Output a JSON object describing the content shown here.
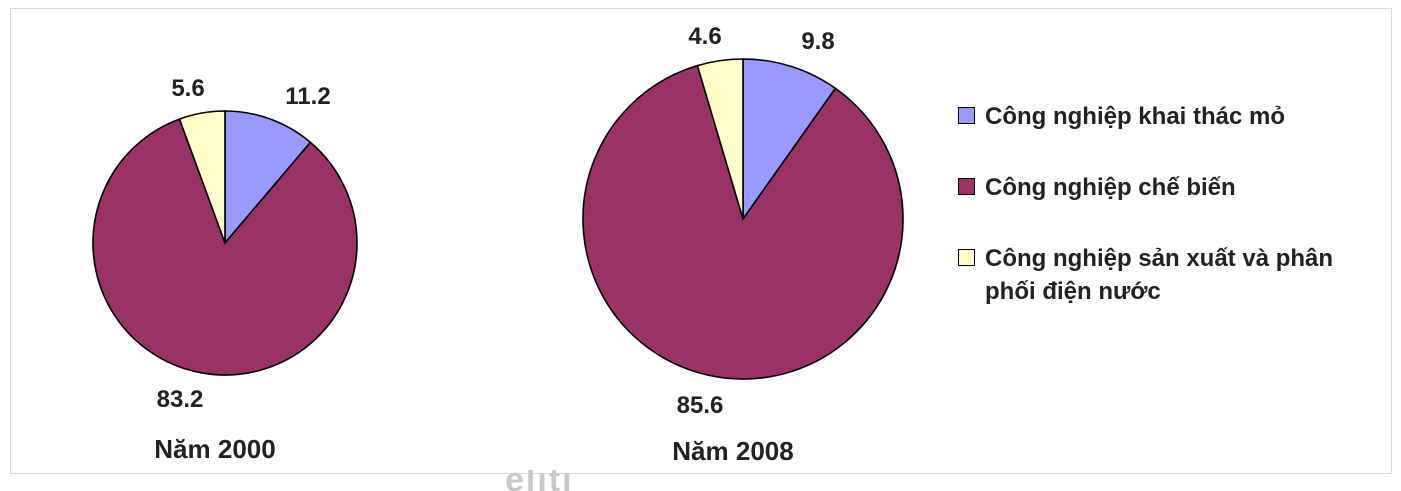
{
  "chart_data": {
    "type": "pie",
    "categories": [
      "Công nghiệp khai thác mỏ",
      "Công nghiệp chế biến",
      "Công nghiệp sản xuất và phân phối điện nước"
    ],
    "colors": [
      "#9999ff",
      "#993366",
      "#ffffcc"
    ],
    "pies": [
      {
        "label": "Năm 2000",
        "values": [
          11.2,
          83.2,
          5.6
        ],
        "value_labels": [
          "11.2",
          "83.2",
          "5.6"
        ]
      },
      {
        "label": "Năm 2008",
        "values": [
          9.8,
          85.6,
          4.6
        ],
        "value_labels": [
          "9.8",
          "85.6",
          "4.6"
        ]
      }
    ],
    "legend_position": "right"
  },
  "legend": {
    "items": [
      {
        "label": "Công nghiệp khai thác mỏ"
      },
      {
        "label": "Công nghiệp chế biến"
      },
      {
        "label": "Công nghiệp sản xuất và phân phối điện nước"
      }
    ]
  },
  "watermark": {
    "text": "eliti"
  }
}
